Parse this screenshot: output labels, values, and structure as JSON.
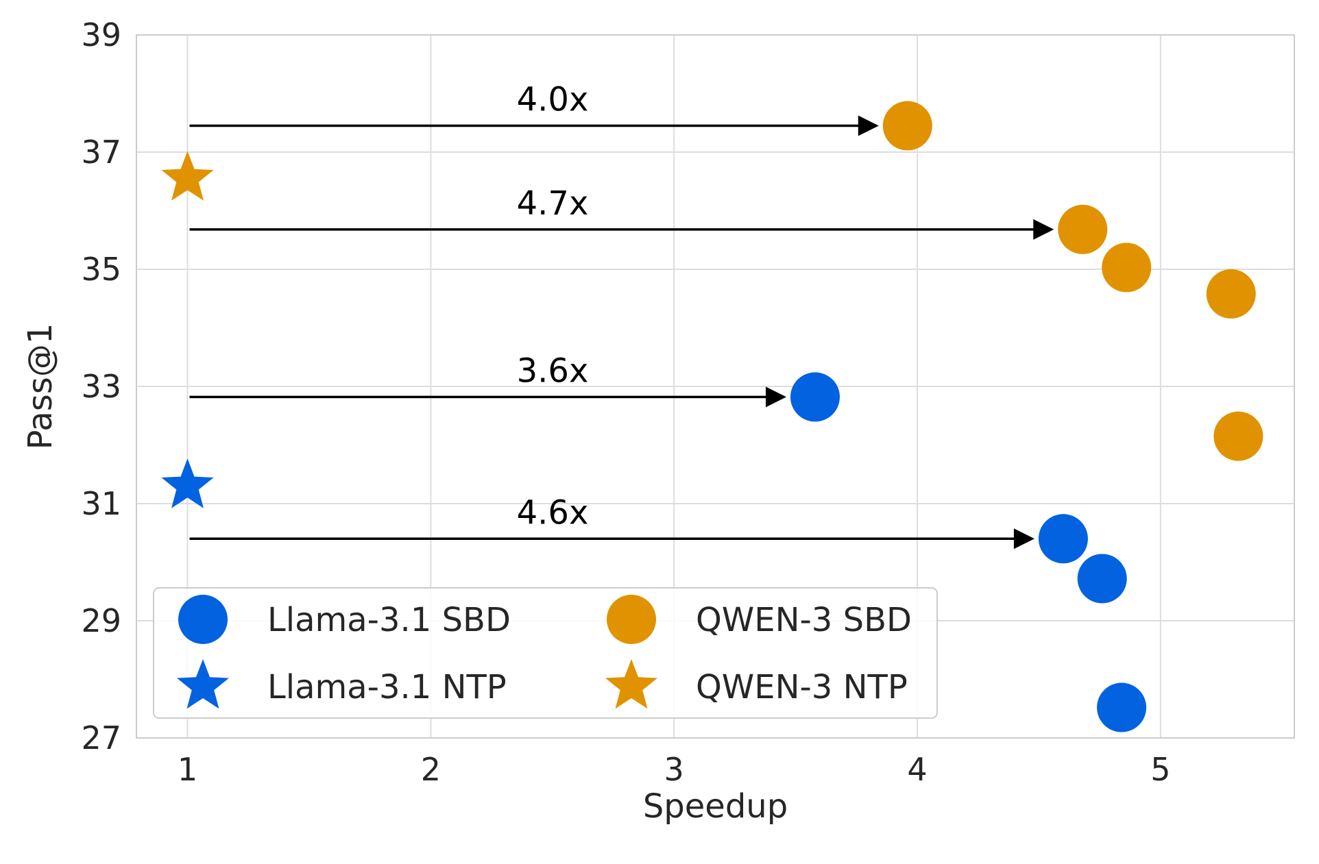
{
  "chart_data": {
    "type": "scatter",
    "title": "",
    "xlabel": "Speedup",
    "ylabel": "Pass@1",
    "xlim": [
      0.79,
      5.55
    ],
    "ylim": [
      27,
      39
    ],
    "xticks": [
      1,
      2,
      3,
      4,
      5
    ],
    "yticks": [
      27,
      29,
      31,
      33,
      35,
      37,
      39
    ],
    "grid": true,
    "legend_position": "lower-left",
    "series": [
      {
        "name": "Llama-3.1 SBD",
        "marker": "circle",
        "color": "#0262e0",
        "points": [
          {
            "x": 3.58,
            "y": 32.82
          },
          {
            "x": 4.6,
            "y": 30.4
          },
          {
            "x": 4.76,
            "y": 29.72
          },
          {
            "x": 4.84,
            "y": 27.52
          }
        ]
      },
      {
        "name": "Llama-3.1 NTP",
        "marker": "star",
        "color": "#0262e0",
        "points": [
          {
            "x": 1.0,
            "y": 31.3
          }
        ]
      },
      {
        "name": "QWEN-3 SBD",
        "marker": "circle",
        "color": "#e09200",
        "points": [
          {
            "x": 3.96,
            "y": 37.45
          },
          {
            "x": 4.68,
            "y": 35.68
          },
          {
            "x": 4.86,
            "y": 35.03
          },
          {
            "x": 5.29,
            "y": 34.58
          },
          {
            "x": 5.32,
            "y": 32.15
          }
        ]
      },
      {
        "name": "QWEN-3 NTP",
        "marker": "star",
        "color": "#e09200",
        "points": [
          {
            "x": 1.0,
            "y": 36.55
          }
        ]
      }
    ],
    "annotations": [
      {
        "label": "4.0x",
        "y": 37.45,
        "x_start": 1.0,
        "x_end": 3.96
      },
      {
        "label": "4.7x",
        "y": 35.68,
        "x_start": 1.0,
        "x_end": 4.68
      },
      {
        "label": "3.6x",
        "y": 32.82,
        "x_start": 1.0,
        "x_end": 3.58
      },
      {
        "label": "4.6x",
        "y": 30.4,
        "x_start": 1.0,
        "x_end": 4.6
      }
    ]
  }
}
